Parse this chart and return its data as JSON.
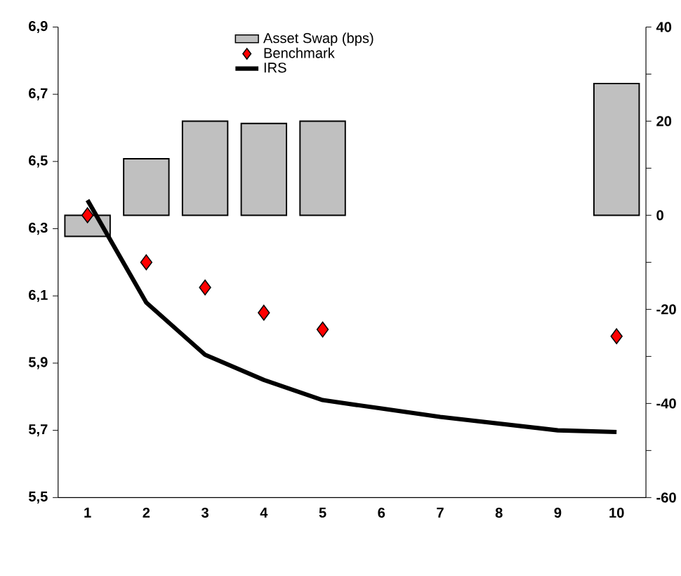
{
  "chart_data": {
    "type": "bar",
    "categories": [
      "1",
      "2",
      "3",
      "4",
      "5",
      "6",
      "7",
      "8",
      "9",
      "10"
    ],
    "series": [
      {
        "name": "Asset Swap (bps)",
        "axis": "y2",
        "color": "#c0c0c0",
        "values": [
          -4.5,
          12,
          20,
          19.5,
          20,
          null,
          null,
          null,
          null,
          28
        ]
      },
      {
        "name": "Benchmark",
        "type": "scatter",
        "marker": "diamond",
        "color": "#ff0000",
        "values": [
          6.34,
          6.2,
          6.125,
          6.05,
          6.0,
          null,
          null,
          null,
          null,
          5.98
        ]
      },
      {
        "name": "IRS",
        "type": "line",
        "line_style": "solid",
        "color": "#000000",
        "values": [
          6.385,
          6.08,
          5.925,
          5.85,
          5.79,
          5.765,
          5.74,
          5.72,
          5.7,
          5.695
        ]
      }
    ],
    "ylim": [
      5.5,
      6.9
    ],
    "yticks": [
      {
        "value": 5.5,
        "label": "5,5"
      },
      {
        "value": 5.7,
        "label": "5,7"
      },
      {
        "value": 5.9,
        "label": "5,9"
      },
      {
        "value": 6.1,
        "label": "6,1"
      },
      {
        "value": 6.3,
        "label": "6,3"
      },
      {
        "value": 6.5,
        "label": "6,5"
      },
      {
        "value": 6.7,
        "label": "6,7"
      },
      {
        "value": 6.9,
        "label": "6,9"
      }
    ],
    "y2lim": [
      -60,
      40
    ],
    "y2ticks": [
      -60,
      {
        "value": -50,
        "label": null
      },
      -40,
      {
        "value": -30,
        "label": null
      },
      -20,
      {
        "value": -10,
        "label": null
      },
      0,
      {
        "value": 10,
        "label": null
      },
      20,
      {
        "value": 30,
        "label": null
      },
      40
    ],
    "legend": "top",
    "grid": false
  }
}
